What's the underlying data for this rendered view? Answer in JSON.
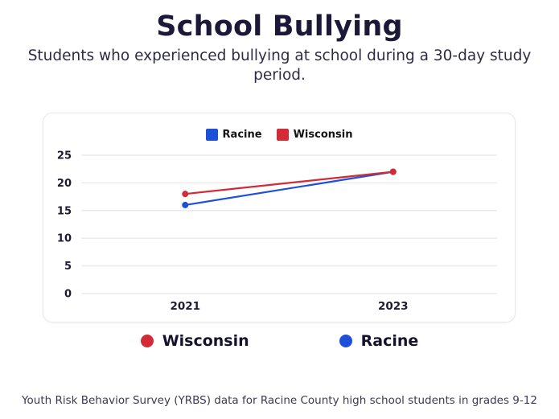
{
  "page": {
    "title": "School Bullying",
    "subtitle": "Students who experienced bullying at school during a 30-day study period.",
    "footnote": "Youth Risk Behavior Survey (YRBS) data for Racine County high school students in grades 9-12"
  },
  "colors": {
    "racine_blue": "#1e4fd8",
    "wisconsin_red": "#d22b35",
    "title_navy": "#1c1838",
    "gridline": "#ebebf0",
    "tick_label": "#1d1b32"
  },
  "chart_data": {
    "type": "line",
    "x": [
      "2021",
      "2023"
    ],
    "series": [
      {
        "name": "Racine",
        "color": "#1e4fd8",
        "values": [
          16,
          22
        ]
      },
      {
        "name": "Wisconsin",
        "color": "#d22b35",
        "values": [
          18,
          22
        ]
      }
    ],
    "ylim": [
      0,
      25
    ],
    "yticks": [
      0,
      5,
      10,
      15,
      20,
      25
    ],
    "grid": "horizontal",
    "legend_top_order": [
      "Racine",
      "Wisconsin"
    ],
    "legend_bottom_order": [
      "Wisconsin",
      "Racine"
    ]
  }
}
